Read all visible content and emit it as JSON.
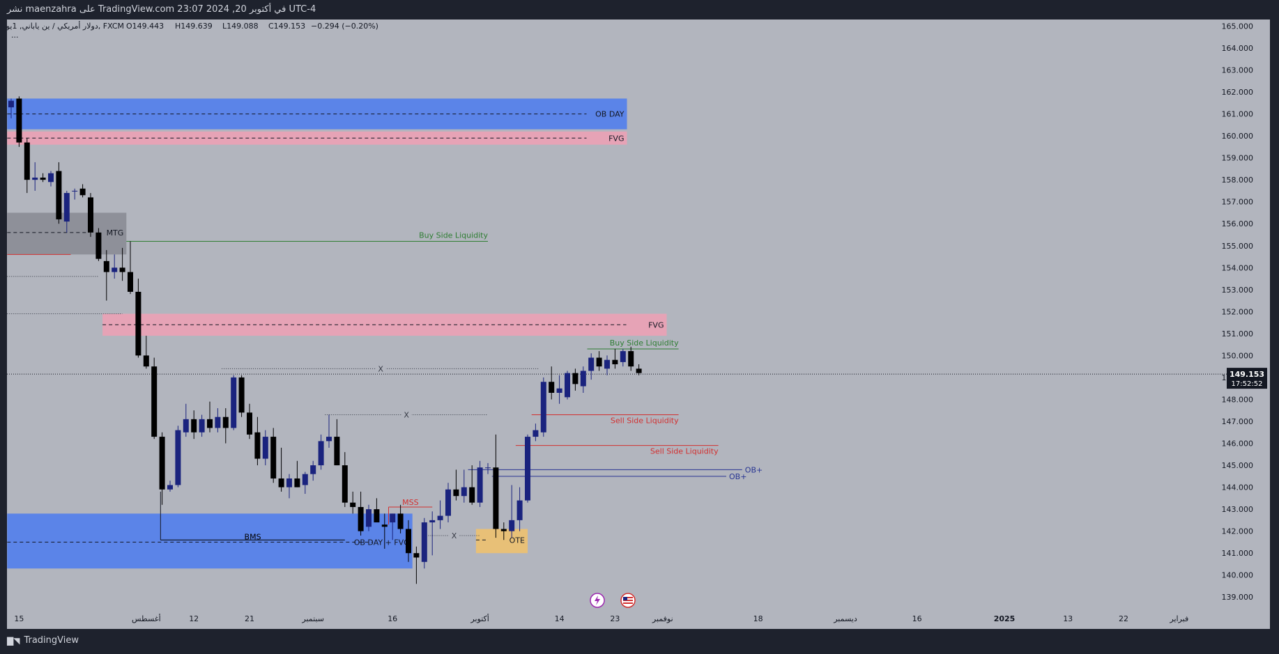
{
  "header": {
    "publish_line": "نشر maenzahra على TradingView.com في أكتوبر 20, 2024 23:07 UTC-4"
  },
  "legend": {
    "symbol_line": "دولار أمريكي / ين ياباني, 1يوم, FXCM",
    "open": "O149.443",
    "high": "H149.639",
    "low": "L149.088",
    "close": "C149.153",
    "change": "−0.294 (−0.20%)",
    "more": "..."
  },
  "price_badge": {
    "price": "149.153",
    "countdown": "17:52:52"
  },
  "footer": {
    "brand": "TradingView"
  },
  "colors": {
    "bull": "#1a237e",
    "bear": "#000000",
    "ob_blue": "#5b84e8",
    "fvg_pink": "#e6a3b6",
    "mtg_gray": "#8e9099",
    "ote_gold": "#e8c077",
    "liquidity_green": "#2e7d32",
    "liquidity_red": "#d32f2f",
    "ob_plus_blue": "#283593"
  },
  "chart_data": {
    "type": "candlestick",
    "ylim": [
      138.5,
      165.3
    ],
    "y_ticks": [
      139,
      140,
      141,
      142,
      143,
      144,
      145,
      146,
      147,
      148,
      149,
      150,
      151,
      152,
      153,
      154,
      155,
      156,
      157,
      158,
      159,
      160,
      161,
      162,
      163,
      164,
      165
    ],
    "x_tick_labels": [
      {
        "bar": 1,
        "label": "15"
      },
      {
        "bar": 17,
        "label": "أغسطس"
      },
      {
        "bar": 23,
        "label": "12"
      },
      {
        "bar": 30,
        "label": "21"
      },
      {
        "bar": 38,
        "label": "سبتمبر"
      },
      {
        "bar": 48,
        "label": "16"
      },
      {
        "bar": 59,
        "label": "أكتوبر"
      },
      {
        "bar": 69,
        "label": "14"
      },
      {
        "bar": 76,
        "label": "23"
      },
      {
        "bar": 82,
        "label": "نوفمبر"
      },
      {
        "bar": 94,
        "label": "18"
      },
      {
        "bar": 105,
        "label": "ديسمبر"
      },
      {
        "bar": 114,
        "label": "16"
      },
      {
        "bar": 125,
        "label": "2025"
      },
      {
        "bar": 133,
        "label": "13"
      },
      {
        "bar": 140,
        "label": "22"
      },
      {
        "bar": 147,
        "label": "فبراير"
      }
    ],
    "candles": [
      {
        "o": 161.3,
        "h": 161.7,
        "l": 160.8,
        "c": 161.6
      },
      {
        "o": 161.7,
        "h": 161.8,
        "l": 159.5,
        "c": 159.7
      },
      {
        "o": 159.7,
        "h": 159.9,
        "l": 157.4,
        "c": 158.0
      },
      {
        "o": 158.0,
        "h": 158.8,
        "l": 157.5,
        "c": 158.1
      },
      {
        "o": 158.1,
        "h": 158.3,
        "l": 157.9,
        "c": 158.0
      },
      {
        "o": 157.9,
        "h": 158.4,
        "l": 157.7,
        "c": 158.3
      },
      {
        "o": 158.4,
        "h": 158.8,
        "l": 156.0,
        "c": 156.2
      },
      {
        "o": 156.1,
        "h": 157.5,
        "l": 155.6,
        "c": 157.4
      },
      {
        "o": 157.5,
        "h": 157.6,
        "l": 157.1,
        "c": 157.5
      },
      {
        "o": 157.6,
        "h": 157.8,
        "l": 157.2,
        "c": 157.3
      },
      {
        "o": 157.2,
        "h": 157.4,
        "l": 155.4,
        "c": 155.6
      },
      {
        "o": 155.6,
        "h": 155.8,
        "l": 154.3,
        "c": 154.4
      },
      {
        "o": 154.3,
        "h": 154.8,
        "l": 152.5,
        "c": 153.8
      },
      {
        "o": 153.8,
        "h": 154.6,
        "l": 153.5,
        "c": 154.0
      },
      {
        "o": 154.0,
        "h": 154.9,
        "l": 153.4,
        "c": 153.8
      },
      {
        "o": 153.8,
        "h": 155.2,
        "l": 152.8,
        "c": 152.9
      },
      {
        "o": 152.9,
        "h": 153.5,
        "l": 149.9,
        "c": 150.0
      },
      {
        "o": 150.0,
        "h": 150.9,
        "l": 149.4,
        "c": 149.5
      },
      {
        "o": 149.5,
        "h": 149.9,
        "l": 146.2,
        "c": 146.3
      },
      {
        "o": 146.3,
        "h": 146.5,
        "l": 143.2,
        "c": 143.9
      },
      {
        "o": 143.9,
        "h": 144.3,
        "l": 143.8,
        "c": 144.1
      },
      {
        "o": 144.1,
        "h": 146.8,
        "l": 144.0,
        "c": 146.6
      },
      {
        "o": 146.5,
        "h": 147.8,
        "l": 146.3,
        "c": 147.1
      },
      {
        "o": 147.1,
        "h": 147.5,
        "l": 146.2,
        "c": 146.5
      },
      {
        "o": 146.5,
        "h": 147.3,
        "l": 146.3,
        "c": 147.1
      },
      {
        "o": 147.1,
        "h": 147.9,
        "l": 146.5,
        "c": 146.7
      },
      {
        "o": 146.7,
        "h": 147.6,
        "l": 146.5,
        "c": 147.2
      },
      {
        "o": 147.2,
        "h": 147.6,
        "l": 146.0,
        "c": 146.7
      },
      {
        "o": 146.7,
        "h": 149.1,
        "l": 146.6,
        "c": 149.0
      },
      {
        "o": 149.0,
        "h": 149.1,
        "l": 147.2,
        "c": 147.4
      },
      {
        "o": 147.4,
        "h": 147.8,
        "l": 146.2,
        "c": 146.4
      },
      {
        "o": 146.5,
        "h": 147.2,
        "l": 145.0,
        "c": 145.3
      },
      {
        "o": 145.3,
        "h": 146.6,
        "l": 145.0,
        "c": 146.3
      },
      {
        "o": 146.3,
        "h": 146.7,
        "l": 144.2,
        "c": 144.4
      },
      {
        "o": 144.4,
        "h": 145.8,
        "l": 143.8,
        "c": 144.0
      },
      {
        "o": 144.0,
        "h": 144.6,
        "l": 143.5,
        "c": 144.4
      },
      {
        "o": 144.4,
        "h": 145.2,
        "l": 144.0,
        "c": 144.0
      },
      {
        "o": 144.1,
        "h": 144.7,
        "l": 143.7,
        "c": 144.6
      },
      {
        "o": 144.6,
        "h": 145.2,
        "l": 144.3,
        "c": 145.0
      },
      {
        "o": 145.0,
        "h": 146.4,
        "l": 144.8,
        "c": 146.1
      },
      {
        "o": 146.1,
        "h": 147.3,
        "l": 145.8,
        "c": 146.3
      },
      {
        "o": 146.3,
        "h": 147.1,
        "l": 145.0,
        "c": 145.0
      },
      {
        "o": 145.0,
        "h": 145.6,
        "l": 143.1,
        "c": 143.3
      },
      {
        "o": 143.3,
        "h": 143.8,
        "l": 142.8,
        "c": 143.1
      },
      {
        "o": 143.1,
        "h": 143.8,
        "l": 141.8,
        "c": 142.0
      },
      {
        "o": 142.2,
        "h": 143.2,
        "l": 142.0,
        "c": 143.0
      },
      {
        "o": 143.0,
        "h": 143.5,
        "l": 142.5,
        "c": 142.4
      },
      {
        "o": 142.3,
        "h": 142.8,
        "l": 141.2,
        "c": 142.2
      },
      {
        "o": 142.4,
        "h": 142.8,
        "l": 141.6,
        "c": 142.8
      },
      {
        "o": 142.8,
        "h": 143.2,
        "l": 141.9,
        "c": 142.1
      },
      {
        "o": 142.1,
        "h": 142.5,
        "l": 140.6,
        "c": 141.0
      },
      {
        "o": 141.0,
        "h": 141.3,
        "l": 139.6,
        "c": 140.8
      },
      {
        "o": 140.6,
        "h": 142.6,
        "l": 140.3,
        "c": 142.4
      },
      {
        "o": 142.4,
        "h": 142.9,
        "l": 140.9,
        "c": 142.5
      },
      {
        "o": 142.5,
        "h": 143.4,
        "l": 142.1,
        "c": 142.7
      },
      {
        "o": 142.7,
        "h": 144.2,
        "l": 142.4,
        "c": 143.9
      },
      {
        "o": 143.9,
        "h": 144.8,
        "l": 143.4,
        "c": 143.6
      },
      {
        "o": 143.6,
        "h": 144.8,
        "l": 143.3,
        "c": 144.0
      },
      {
        "o": 144.0,
        "h": 145.0,
        "l": 143.2,
        "c": 143.3
      },
      {
        "o": 143.3,
        "h": 145.2,
        "l": 143.1,
        "c": 144.9
      },
      {
        "o": 144.9,
        "h": 145.1,
        "l": 144.6,
        "c": 144.9
      },
      {
        "o": 144.9,
        "h": 146.4,
        "l": 141.7,
        "c": 142.1
      },
      {
        "o": 142.1,
        "h": 142.4,
        "l": 141.6,
        "c": 142.0
      },
      {
        "o": 142.0,
        "h": 144.1,
        "l": 141.7,
        "c": 142.5
      },
      {
        "o": 142.5,
        "h": 144.0,
        "l": 142.0,
        "c": 143.4
      },
      {
        "o": 143.4,
        "h": 146.4,
        "l": 143.3,
        "c": 146.3
      },
      {
        "o": 146.3,
        "h": 146.9,
        "l": 146.1,
        "c": 146.6
      },
      {
        "o": 146.5,
        "h": 149.0,
        "l": 146.3,
        "c": 148.8
      },
      {
        "o": 148.8,
        "h": 149.5,
        "l": 148.0,
        "c": 148.3
      },
      {
        "o": 148.3,
        "h": 149.1,
        "l": 147.8,
        "c": 148.5
      },
      {
        "o": 148.1,
        "h": 149.3,
        "l": 148.0,
        "c": 149.2
      },
      {
        "o": 149.2,
        "h": 149.4,
        "l": 148.4,
        "c": 148.7
      },
      {
        "o": 148.6,
        "h": 149.5,
        "l": 148.3,
        "c": 149.3
      },
      {
        "o": 149.3,
        "h": 150.1,
        "l": 148.9,
        "c": 149.9
      },
      {
        "o": 149.9,
        "h": 150.2,
        "l": 149.3,
        "c": 149.5
      },
      {
        "o": 149.4,
        "h": 150.0,
        "l": 149.1,
        "c": 149.8
      },
      {
        "o": 149.8,
        "h": 150.3,
        "l": 149.4,
        "c": 149.6
      },
      {
        "o": 149.7,
        "h": 150.3,
        "l": 149.5,
        "c": 150.2
      },
      {
        "o": 150.2,
        "h": 150.4,
        "l": 149.3,
        "c": 149.5
      },
      {
        "o": 149.4,
        "h": 149.6,
        "l": 149.1,
        "c": 149.2
      }
    ],
    "zones": [
      {
        "name": "ob-day-top",
        "y1": 160.3,
        "y2": 161.7,
        "bar1": -0.5,
        "bar2": 77.5,
        "color": "ob_blue",
        "mid": 161.0,
        "label": "OB DAY"
      },
      {
        "name": "fvg-top",
        "y1": 159.6,
        "y2": 160.2,
        "bar1": -0.5,
        "bar2": 77.5,
        "color": "fvg_pink",
        "mid": 159.9,
        "label": "FVG"
      },
      {
        "name": "mtg",
        "y1": 154.6,
        "y2": 156.5,
        "bar1": -0.5,
        "bar2": 14.5,
        "color": "mtg_gray",
        "mid": 155.6,
        "label": "MTG"
      },
      {
        "name": "fvg-mid",
        "y1": 150.9,
        "y2": 151.9,
        "bar1": 11.5,
        "bar2": 82.5,
        "color": "fvg_pink",
        "mid": 151.4,
        "label": "FVG"
      },
      {
        "name": "ob-day-bottom",
        "y1": 140.3,
        "y2": 142.8,
        "bar1": -0.5,
        "bar2": 50.5,
        "color": "ob_blue",
        "mid": 141.5,
        "label": "OB DAY + FVG"
      },
      {
        "name": "ote",
        "y1": 141.0,
        "y2": 142.1,
        "bar1": 58.5,
        "bar2": 65.0,
        "color": "ote_gold",
        "mid": 141.6,
        "label": "OTE"
      }
    ],
    "levels": [
      {
        "name": "buy-side-liquidity-1",
        "y": 155.2,
        "bar1": 14.5,
        "bar2": 60.0,
        "color": "liquidity_green",
        "label": "Buy Side Liquidity",
        "align": "end",
        "dy": -5
      },
      {
        "name": "buy-side-liquidity-2",
        "y": 150.3,
        "bar1": 72.5,
        "bar2": 84.0,
        "color": "liquidity_green",
        "label": "Buy Side Liquidity",
        "align": "end",
        "dy": -5
      },
      {
        "name": "sell-side-liquidity-1",
        "y": 147.3,
        "bar1": 65.5,
        "bar2": 84.0,
        "color": "liquidity_red",
        "label": "Sell Side Liquidity",
        "align": "end",
        "dy": 12
      },
      {
        "name": "sell-side-liquidity-2",
        "y": 145.9,
        "bar1": 63.5,
        "bar2": 89.0,
        "color": "liquidity_red",
        "label": "Sell Side Liquidity",
        "align": "end",
        "dy": 12
      },
      {
        "name": "ob-plus-1",
        "y": 144.8,
        "bar1": 57.5,
        "bar2": 92.0,
        "color": "ob_plus_blue",
        "label": "OB+",
        "align": "start",
        "dy": 4
      },
      {
        "name": "ob-plus-2",
        "y": 144.5,
        "bar1": 60.5,
        "bar2": 90.0,
        "color": "ob_plus_blue",
        "label": "OB+",
        "align": "start",
        "dy": 4
      },
      {
        "name": "mss",
        "y": 143.1,
        "bar1": 47.5,
        "bar2": 53.0,
        "color": "liquidity_red",
        "label": "MSS",
        "align": "middle",
        "dy": -3
      },
      {
        "name": "red-short",
        "y": 154.6,
        "bar1": -0.5,
        "bar2": 7.5,
        "color": "liquidity_red",
        "label": "",
        "align": "end",
        "dy": 0
      },
      {
        "name": "bms",
        "y": 141.6,
        "bar1": 18.8,
        "bar2": 42.0,
        "color": "bear",
        "label": "BMS",
        "align": "middle",
        "dy": -1
      }
    ],
    "dotted_levels": [
      {
        "name": "x-level-1",
        "y": 149.4,
        "bar1": 26.5,
        "bar2": 66.5,
        "label": "X"
      },
      {
        "name": "x-level-2",
        "y": 147.3,
        "bar1": 39.5,
        "bar2": 60.0,
        "label": "X"
      },
      {
        "name": "x-level-3",
        "y": 141.8,
        "bar1": 52.5,
        "bar2": 59.0,
        "label": "X"
      },
      {
        "name": "dotted-left-1",
        "y": 153.6,
        "bar1": -0.5,
        "bar2": 11.0,
        "label": ""
      },
      {
        "name": "dotted-left-2",
        "y": 151.9,
        "bar1": -0.5,
        "bar2": 14.0,
        "label": ""
      }
    ],
    "current_price": 149.153
  }
}
